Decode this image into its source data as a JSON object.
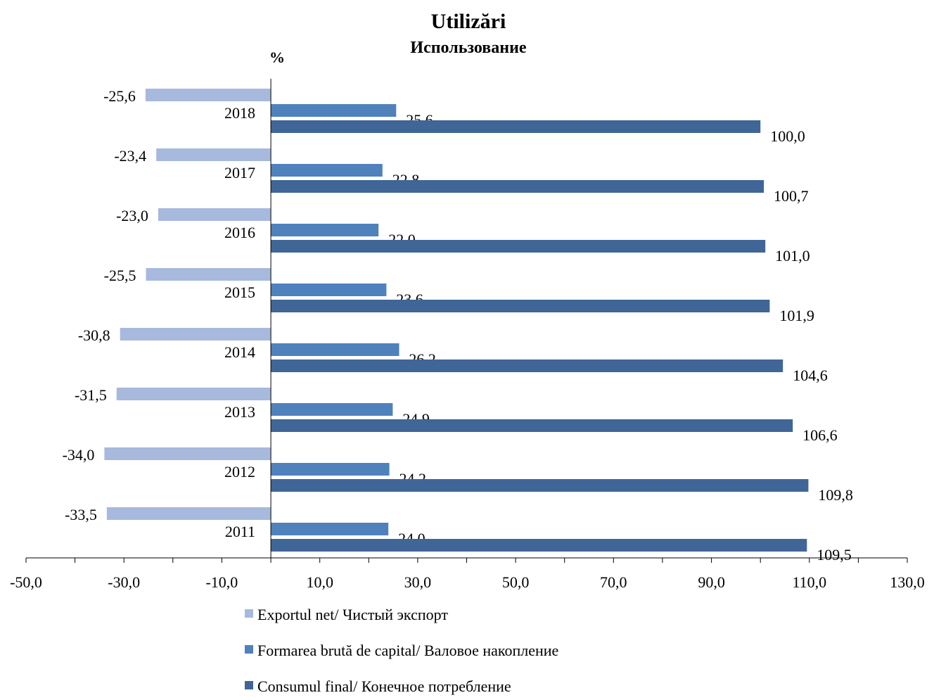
{
  "chart_data": {
    "type": "bar",
    "orientation": "horizontal",
    "title": "Utilizări",
    "subtitle": "Использование",
    "unit_label": "%",
    "categories": [
      "2018",
      "2017",
      "2016",
      "2015",
      "2014",
      "2013",
      "2012",
      "2011"
    ],
    "series": [
      {
        "name": "Exportul net/ Чистый экспорт",
        "color": "#a7b9dc",
        "values": [
          -25.6,
          -23.4,
          -23.0,
          -25.5,
          -30.8,
          -31.5,
          -34.0,
          -33.5
        ],
        "labels": [
          "-25,6",
          "-23,4",
          "-23,0",
          "-25,5",
          "-30,8",
          "-31,5",
          "-34,0",
          "-33,5"
        ]
      },
      {
        "name": "Formarea brută de capital/ Валовое накопление",
        "color": "#4f81bd",
        "values": [
          25.6,
          22.8,
          22.0,
          23.6,
          26.2,
          24.9,
          24.2,
          24.0
        ],
        "labels": [
          "25,6",
          "22,8",
          "22,0",
          "23,6",
          "26,2",
          "24,9",
          "24,2",
          "24,0"
        ]
      },
      {
        "name": "Consumul final/ Конечное потребление",
        "color": "#3f6696",
        "values": [
          100.0,
          100.7,
          101.0,
          101.9,
          104.6,
          106.6,
          109.8,
          109.5
        ],
        "labels": [
          "100,0",
          "100,7",
          "101,0",
          "101,9",
          "104,6",
          "106,6",
          "109,8",
          "109,5"
        ]
      }
    ],
    "xlim": [
      -50,
      130
    ],
    "xticks": [
      "-50,0",
      "-30,0",
      "-10,0",
      "10,0",
      "30,0",
      "50,0",
      "70,0",
      "90,0",
      "110,0",
      "130,0"
    ],
    "grid": false,
    "legend_position": "bottom"
  }
}
